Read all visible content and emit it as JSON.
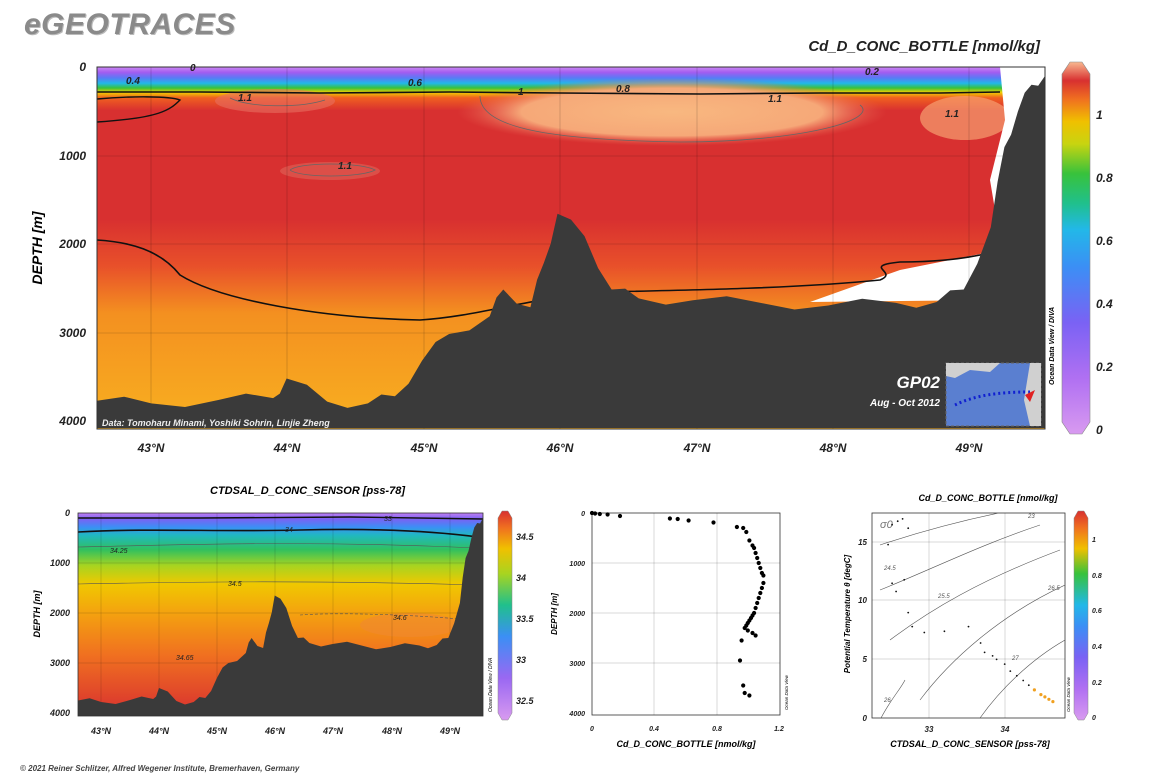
{
  "header": {
    "brand": "eGEOTRACES",
    "title": "Cd_D_CONC_BOTTLE [nmol/kg]"
  },
  "footer": {
    "credit": "© 2021 Reiner Schlitzer, Alfred Wegener Institute, Bremerhaven, Germany"
  },
  "colors": {
    "bathymetry": "#3a3a3a",
    "scale": [
      "#d89af0",
      "#a25cf0",
      "#6c6cf5",
      "#3b8ff5",
      "#22b8e8",
      "#20c08c",
      "#38c23c",
      "#a8d420",
      "#f0d000",
      "#f8a000",
      "#f06020",
      "#d83030",
      "#f8b080"
    ]
  },
  "main_section": {
    "ylabel": "DEPTH [m]",
    "y_ticks": [
      "0",
      "1000",
      "2000",
      "3000",
      "4000"
    ],
    "x_ticks": [
      "43°N",
      "44°N",
      "45°N",
      "46°N",
      "47°N",
      "48°N",
      "49°N"
    ],
    "colorbar_ticks": [
      "0",
      "0.2",
      "0.4",
      "0.6",
      "0.8",
      "1"
    ],
    "side_label": "Ocean Data View / DIVA",
    "data_credit": "Data: Tomoharu Minami, Yoshiki Sohrin, Linjie Zheng",
    "cruise": "GP02",
    "period": "Aug - Oct 2012",
    "contour_labels": [
      "0.4",
      "0",
      "0.6",
      "1",
      "0.8",
      "0.2",
      "1.1",
      "1.1",
      "1.1",
      "1.1"
    ]
  },
  "salinity_panel": {
    "title": "CTDSAL_D_CONC_SENSOR [pss-78]",
    "ylabel": "DEPTH [m]",
    "y_ticks": [
      "0",
      "1000",
      "2000",
      "3000",
      "4000"
    ],
    "x_ticks": [
      "43°N",
      "44°N",
      "45°N",
      "46°N",
      "47°N",
      "48°N",
      "49°N"
    ],
    "colorbar_ticks": [
      "34.5",
      "34",
      "33.5",
      "33",
      "32.5"
    ],
    "side_label": "Ocean Data View / DIVA",
    "contour_labels": [
      "33",
      "34",
      "34.25",
      "34.5",
      "34.6",
      "34.65"
    ]
  },
  "profile_panel": {
    "xlabel": "Cd_D_CONC_BOTTLE [nmol/kg]",
    "ylabel": "DEPTH [m]",
    "x_ticks": [
      "0",
      "0.4",
      "0.8",
      "1.2"
    ],
    "y_ticks": [
      "0",
      "1000",
      "2000",
      "3000",
      "4000"
    ],
    "side_label": "Ocean Data View"
  },
  "ts_panel": {
    "title": "Cd_D_CONC_BOTTLE [nmol/kg]",
    "xlabel": "CTDSAL_D_CONC_SENSOR [pss-78]",
    "ylabel": "Potential Temperature θ [degC]",
    "sigma_label": "σ0",
    "x_ticks": [
      "33",
      "34"
    ],
    "y_ticks": [
      "0",
      "5",
      "10",
      "15"
    ],
    "isopycnal_labels": [
      "23",
      "24.5",
      "25.5",
      "26.5",
      "27",
      "26"
    ],
    "colorbar_ticks": [
      "0",
      "0.2",
      "0.4",
      "0.6",
      "0.8",
      "1"
    ],
    "side_label": "Ocean Data View"
  },
  "chart_data": [
    {
      "type": "heatmap",
      "title": "Cd_D_CONC_BOTTLE [nmol/kg]",
      "xlabel": "",
      "ylabel": "DEPTH [m]",
      "xlim": [
        42.6,
        49.6
      ],
      "ylim": [
        0,
        4000
      ],
      "color_range": [
        0,
        1.15
      ],
      "bathymetry": {
        "x": [
          42.6,
          43.0,
          43.5,
          43.9,
          44.0,
          44.3,
          44.6,
          44.8,
          45.0,
          45.2,
          45.5,
          45.6,
          45.8,
          45.9,
          46.0,
          46.2,
          46.4,
          46.6,
          47.0,
          47.5,
          48.0,
          48.5,
          48.8,
          49.0,
          49.2,
          49.3,
          49.4,
          49.5,
          49.6
        ],
        "depth": [
          3750,
          3780,
          3740,
          3720,
          3500,
          3760,
          3780,
          3700,
          3300,
          3000,
          2800,
          2500,
          2700,
          2200,
          1650,
          1900,
          2500,
          2600,
          2620,
          2650,
          2680,
          2650,
          2640,
          2500,
          1800,
          900,
          500,
          200,
          100
        ]
      },
      "contours": [
        {
          "level": 1.0,
          "x": [
            42.6,
            43.2,
            43.8,
            44.5,
            45.2,
            45.8,
            46.4,
            47.0,
            47.6,
            48.2,
            48.8,
            49.2
          ],
          "depth": [
            300,
            290,
            300,
            290,
            300,
            290,
            300,
            305,
            300,
            300,
            310,
            300
          ]
        },
        {
          "level": 1.0,
          "x": [
            42.6,
            43.0,
            43.5,
            44.0,
            44.5,
            45.0,
            45.5,
            46.0,
            46.5,
            47.0,
            47.5,
            48.0,
            48.4,
            48.6,
            49.0,
            49.2
          ],
          "depth": [
            1950,
            2000,
            2500,
            2750,
            2850,
            2850,
            2700,
            2550,
            2550,
            2550,
            2520,
            2450,
            2350,
            2250,
            2150,
            2100
          ]
        }
      ],
      "warm_core": {
        "x": [
          45.4,
          48.3
        ],
        "depth": [
          350,
          850
        ],
        "value": 1.12
      },
      "surface_values": [
        0.4,
        0,
        0.6,
        0.8,
        0.2
      ]
    },
    {
      "type": "heatmap",
      "title": "CTDSAL_D_CONC_SENSOR [pss-78]",
      "ylabel": "DEPTH [m]",
      "xlim": [
        42.6,
        49.6
      ],
      "ylim": [
        0,
        4000
      ],
      "color_range": [
        32.3,
        34.7
      ],
      "contour_levels": [
        33,
        34,
        34.25,
        34.5,
        34.6,
        34.65
      ]
    },
    {
      "type": "scatter",
      "xlabel": "Cd_D_CONC_BOTTLE [nmol/kg]",
      "ylabel": "DEPTH [m]",
      "xlim": [
        0,
        1.2
      ],
      "ylim": [
        0,
        4000
      ],
      "x": [
        0.0,
        0.02,
        0.05,
        0.1,
        0.18,
        0.5,
        0.55,
        0.62,
        0.78,
        0.93,
        0.97,
        0.99,
        1.01,
        1.03,
        1.04,
        1.05,
        1.06,
        1.07,
        1.08,
        1.09,
        1.1,
        1.1,
        1.09,
        1.08,
        1.07,
        1.06,
        1.05,
        1.04,
        1.03,
        1.02,
        1.01,
        1.0,
        0.99,
        0.98,
        1.0,
        1.03,
        1.05,
        0.96,
        0.95,
        0.97,
        0.98,
        1.01
      ],
      "y": [
        0,
        10,
        20,
        30,
        60,
        110,
        120,
        150,
        190,
        280,
        300,
        380,
        550,
        650,
        700,
        800,
        900,
        1000,
        1100,
        1200,
        1250,
        1400,
        1500,
        1600,
        1700,
        1800,
        1900,
        2000,
        2050,
        2100,
        2150,
        2200,
        2250,
        2300,
        2350,
        2400,
        2450,
        2550,
        2950,
        3450,
        3600,
        3650
      ]
    },
    {
      "type": "scatter",
      "title": "Cd_D_CONC_BOTTLE [nmol/kg]",
      "xlabel": "CTDSAL_D_CONC_SENSOR [pss-78]",
      "ylabel": "Potential Temperature θ [degC]",
      "xlim": [
        32.4,
        34.8
      ],
      "ylim": [
        0,
        17.5
      ],
      "x": [
        32.65,
        32.72,
        32.78,
        32.85,
        32.6,
        32.65,
        32.7,
        32.8,
        32.85,
        32.9,
        33.05,
        33.3,
        33.6,
        33.75,
        33.8,
        33.9,
        33.95,
        34.05,
        34.12,
        34.2,
        34.28,
        34.35,
        34.42,
        34.5,
        34.55,
        34.6,
        34.65
      ],
      "y": [
        16.5,
        16.8,
        17.0,
        16.2,
        14.8,
        11.5,
        10.8,
        11.8,
        9.0,
        7.8,
        7.3,
        7.4,
        7.8,
        6.4,
        5.6,
        5.3,
        5.0,
        4.6,
        4.0,
        3.6,
        3.2,
        2.8,
        2.4,
        2.0,
        1.8,
        1.6,
        1.4
      ]
    }
  ]
}
